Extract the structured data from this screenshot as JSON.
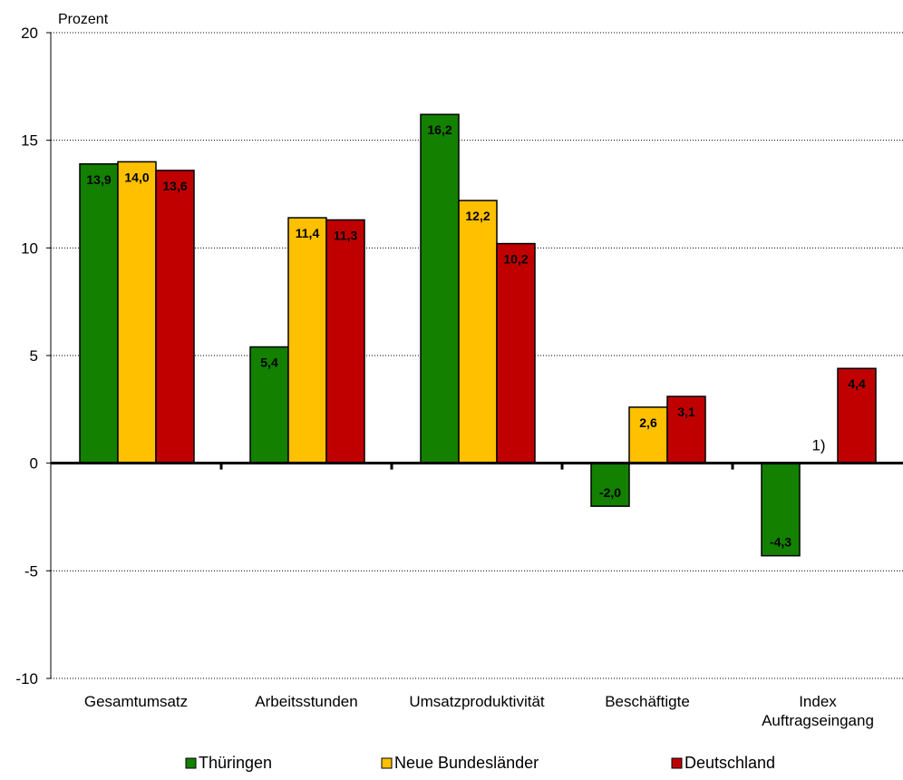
{
  "chart_data": {
    "type": "bar",
    "ylabel": "Prozent",
    "ylim": [
      -10,
      20
    ],
    "yticks": [
      -10,
      -5,
      0,
      5,
      10,
      15,
      20
    ],
    "grid": true,
    "legend_position": "bottom",
    "categories": [
      [
        "Gesamtumsatz"
      ],
      [
        "Arbeitsstunden"
      ],
      [
        "Umsatzproduktivität"
      ],
      [
        "Beschäftigte"
      ],
      [
        "Index",
        "Auftragseingang"
      ]
    ],
    "series": [
      {
        "name": "Thüringen",
        "color": "#138000",
        "values": [
          13.9,
          5.4,
          16.2,
          -2.0,
          -4.3
        ],
        "labels": [
          "13,9",
          "5,4",
          "16,2",
          "-2,0",
          "-4,3"
        ]
      },
      {
        "name": "Neue Bundesländer",
        "color": "#FFC000",
        "values": [
          14.0,
          11.4,
          12.2,
          2.6,
          null
        ],
        "labels": [
          "14,0",
          "11,4",
          "12,2",
          "2,6",
          ""
        ]
      },
      {
        "name": "Deutschland",
        "color": "#C00000",
        "values": [
          13.6,
          11.3,
          10.2,
          3.1,
          4.4
        ],
        "labels": [
          "13,6",
          "11,3",
          "10,2",
          "3,1",
          "4,4"
        ]
      }
    ],
    "annotations": [
      {
        "category_index": 4,
        "series_index": 1,
        "text": "1)"
      }
    ]
  }
}
